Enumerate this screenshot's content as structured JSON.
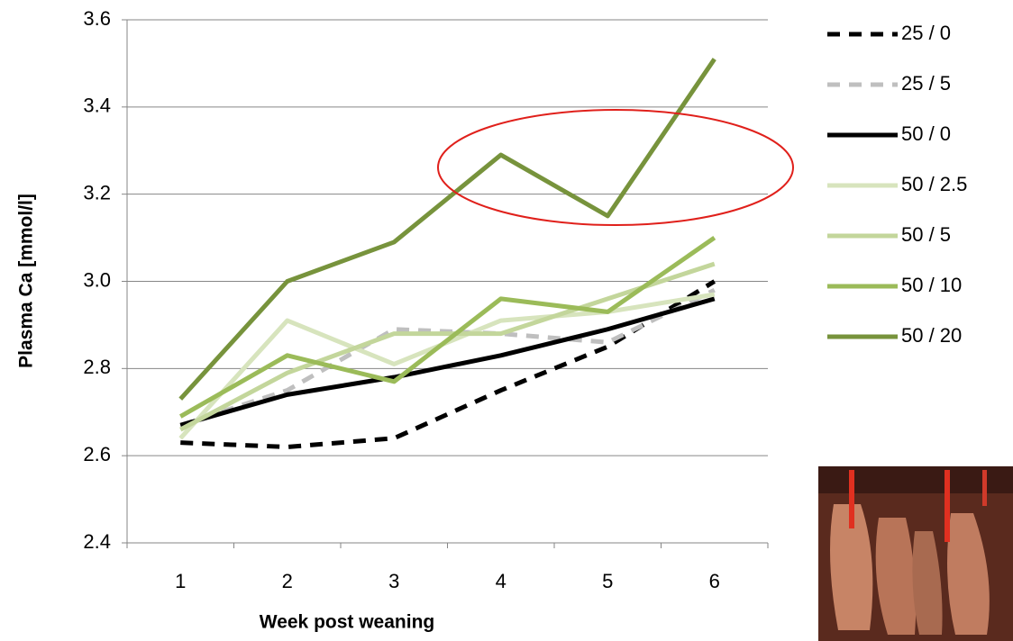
{
  "chart_data": {
    "type": "line",
    "x_label": "Week post weaning",
    "y_label": "Plasma Ca [mmol/l]",
    "categories": [
      "1",
      "2",
      "3",
      "4",
      "5",
      "6"
    ],
    "ylim": [
      2.4,
      3.6
    ],
    "yticks": [
      2.4,
      2.6,
      2.8,
      {
        "value": 3.0,
        "label": "3.0"
      },
      3.2,
      3.4,
      3.6
    ],
    "grid": true,
    "legend": "right",
    "series": [
      {
        "name": "25 / 0",
        "color": "#000000",
        "dashed": true,
        "values": [
          2.63,
          2.62,
          2.64,
          2.75,
          2.85,
          3.0
        ]
      },
      {
        "name": "25 / 5",
        "color": "#bfbfbf",
        "dashed": true,
        "values": [
          2.67,
          2.75,
          2.89,
          2.88,
          2.86,
          2.98
        ]
      },
      {
        "name": "50 / 0",
        "color": "#000000",
        "dashed": false,
        "values": [
          2.67,
          2.74,
          2.78,
          2.83,
          2.89,
          2.96
        ]
      },
      {
        "name": "50 / 2.5",
        "color": "#d7e4bd",
        "dashed": false,
        "values": [
          2.64,
          2.91,
          2.81,
          2.91,
          2.93,
          2.97
        ]
      },
      {
        "name": "50 / 5",
        "color": "#c3d69b",
        "dashed": false,
        "values": [
          2.66,
          2.79,
          2.88,
          2.88,
          2.96,
          3.04
        ]
      },
      {
        "name": "50 / 10",
        "color": "#9bbb59",
        "dashed": false,
        "values": [
          2.69,
          2.83,
          2.77,
          2.96,
          2.93,
          3.1
        ]
      },
      {
        "name": "50 / 20",
        "color": "#77933c",
        "dashed": false,
        "values": [
          2.73,
          3.0,
          3.09,
          3.29,
          3.15,
          3.51
        ]
      }
    ]
  }
}
